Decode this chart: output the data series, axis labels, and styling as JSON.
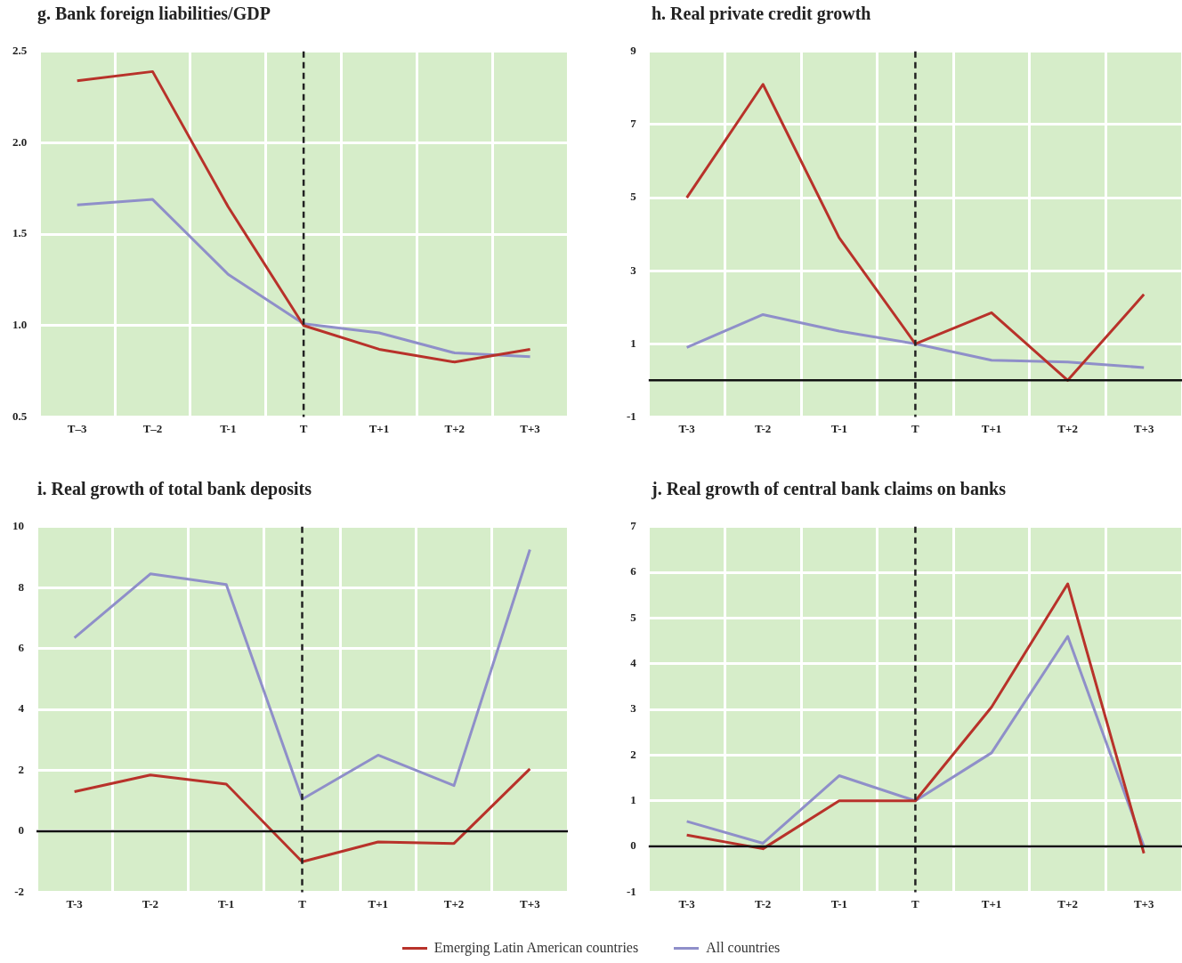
{
  "chart_data": [
    {
      "type": "line",
      "title": "g. Bank foreign liabilities/GDP",
      "categories": [
        "T–3",
        "T–2",
        "T-1",
        "T",
        "T+1",
        "T+2",
        "T+3"
      ],
      "series": [
        {
          "color": "#b8322a",
          "values": [
            2.34,
            2.39,
            1.65,
            1.0,
            0.87,
            0.8,
            0.87
          ]
        },
        {
          "color": "#8f8fc9",
          "values": [
            1.66,
            1.69,
            1.28,
            1.01,
            0.96,
            0.85,
            0.83
          ]
        }
      ],
      "ylim": [
        0.5,
        2.5
      ],
      "yticks": [
        {
          "value": 0.5,
          "label": "0.5"
        },
        {
          "value": 1,
          "label": "1.0"
        },
        {
          "value": 1.5,
          "label": "1.5"
        },
        {
          "value": 2,
          "label": "2.0"
        },
        {
          "value": 2.5,
          "label": "2.5"
        }
      ],
      "grid": true,
      "ref_lines": [
        {
          "axis": "x",
          "value": "T",
          "color": "#222222",
          "line_style": "dashed"
        }
      ]
    },
    {
      "type": "line",
      "title": "h. Real private credit growth",
      "categories": [
        "T-3",
        "T-2",
        "T-1",
        "T",
        "T+1",
        "T+2",
        "T+3"
      ],
      "series": [
        {
          "color": "#b8322a",
          "values": [
            5.0,
            8.1,
            3.9,
            1.0,
            1.85,
            0.0,
            2.35
          ]
        },
        {
          "color": "#8f8fc9",
          "values": [
            0.9,
            1.8,
            1.35,
            1.0,
            0.55,
            0.5,
            0.35
          ]
        }
      ],
      "ylim": [
        -1,
        9
      ],
      "yticks": [
        -1,
        1,
        3,
        5,
        7,
        9
      ],
      "grid": true,
      "ref_lines": [
        {
          "axis": "y",
          "value": 0,
          "color": "#111111",
          "line_style": "solid"
        },
        {
          "axis": "x",
          "value": "T",
          "color": "#222222",
          "line_style": "dashed"
        }
      ]
    },
    {
      "type": "line",
      "title": "i. Real growth of total bank deposits",
      "categories": [
        "T-3",
        "T-2",
        "T-1",
        "T",
        "T+1",
        "T+2",
        "T+3"
      ],
      "series": [
        {
          "color": "#b8322a",
          "values": [
            1.3,
            1.85,
            1.55,
            -1.0,
            -0.35,
            -0.4,
            2.05
          ]
        },
        {
          "color": "#8f8fc9",
          "values": [
            6.35,
            8.45,
            8.1,
            1.05,
            2.5,
            1.5,
            9.25
          ]
        }
      ],
      "ylim": [
        -2,
        10
      ],
      "yticks": [
        -2,
        0,
        2,
        4,
        6,
        8,
        10
      ],
      "grid": true,
      "ref_lines": [
        {
          "axis": "y",
          "value": 0,
          "color": "#111111",
          "line_style": "solid"
        },
        {
          "axis": "x",
          "value": "T",
          "color": "#222222",
          "line_style": "dashed"
        }
      ]
    },
    {
      "type": "line",
      "title": "j. Real growth of central bank claims on banks",
      "categories": [
        "T-3",
        "T-2",
        "T-1",
        "T",
        "T+1",
        "T+2",
        "T+3"
      ],
      "series": [
        {
          "name": "Emerging Latin American countries",
          "color": "#b8322a",
          "values": [
            0.25,
            -0.05,
            1.0,
            1.0,
            3.05,
            5.75,
            -0.15
          ]
        },
        {
          "name": "All countries",
          "color": "#8f8fc9",
          "values": [
            0.55,
            0.07,
            1.55,
            1.0,
            2.05,
            4.6,
            0.0
          ]
        }
      ],
      "ylim": [
        -1,
        7
      ],
      "yticks": [
        -1,
        0,
        1,
        2,
        3,
        4,
        5,
        6,
        7
      ],
      "grid": true,
      "legend": "bottom",
      "ref_lines": [
        {
          "axis": "y",
          "value": 0,
          "color": "#111111",
          "line_style": "solid"
        },
        {
          "axis": "x",
          "value": "T",
          "color": "#222222",
          "line_style": "dashed"
        }
      ]
    }
  ]
}
